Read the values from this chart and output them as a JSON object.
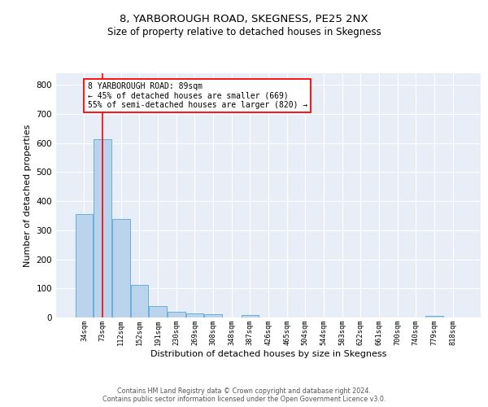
{
  "title1": "8, YARBOROUGH ROAD, SKEGNESS, PE25 2NX",
  "title2": "Size of property relative to detached houses in Skegness",
  "xlabel": "Distribution of detached houses by size in Skegness",
  "ylabel": "Number of detached properties",
  "bar_labels": [
    "34sqm",
    "73sqm",
    "112sqm",
    "152sqm",
    "191sqm",
    "230sqm",
    "269sqm",
    "308sqm",
    "348sqm",
    "387sqm",
    "426sqm",
    "465sqm",
    "504sqm",
    "544sqm",
    "583sqm",
    "622sqm",
    "661sqm",
    "700sqm",
    "740sqm",
    "779sqm",
    "818sqm"
  ],
  "bar_values": [
    357,
    614,
    338,
    113,
    38,
    20,
    15,
    10,
    0,
    8,
    0,
    0,
    0,
    0,
    0,
    0,
    0,
    0,
    0,
    7,
    0
  ],
  "bar_color": "#bad4ee",
  "bar_edge_color": "#6aaed6",
  "background_color": "#e8eef8",
  "grid_color": "#ffffff",
  "vline_x": 1,
  "vline_color": "red",
  "annotation_text": "8 YARBOROUGH ROAD: 89sqm\n← 45% of detached houses are smaller (669)\n55% of semi-detached houses are larger (820) →",
  "annotation_box_color": "white",
  "annotation_border_color": "red",
  "ylim": [
    0,
    840
  ],
  "yticks": [
    0,
    100,
    200,
    300,
    400,
    500,
    600,
    700,
    800
  ],
  "footer_text": "Contains HM Land Registry data © Crown copyright and database right 2024.\nContains public sector information licensed under the Open Government Licence v3.0.",
  "title_fontsize": 9.5,
  "subtitle_fontsize": 8.5,
  "ann_fontsize": 7.0,
  "ylabel_fontsize": 8,
  "xlabel_fontsize": 8
}
